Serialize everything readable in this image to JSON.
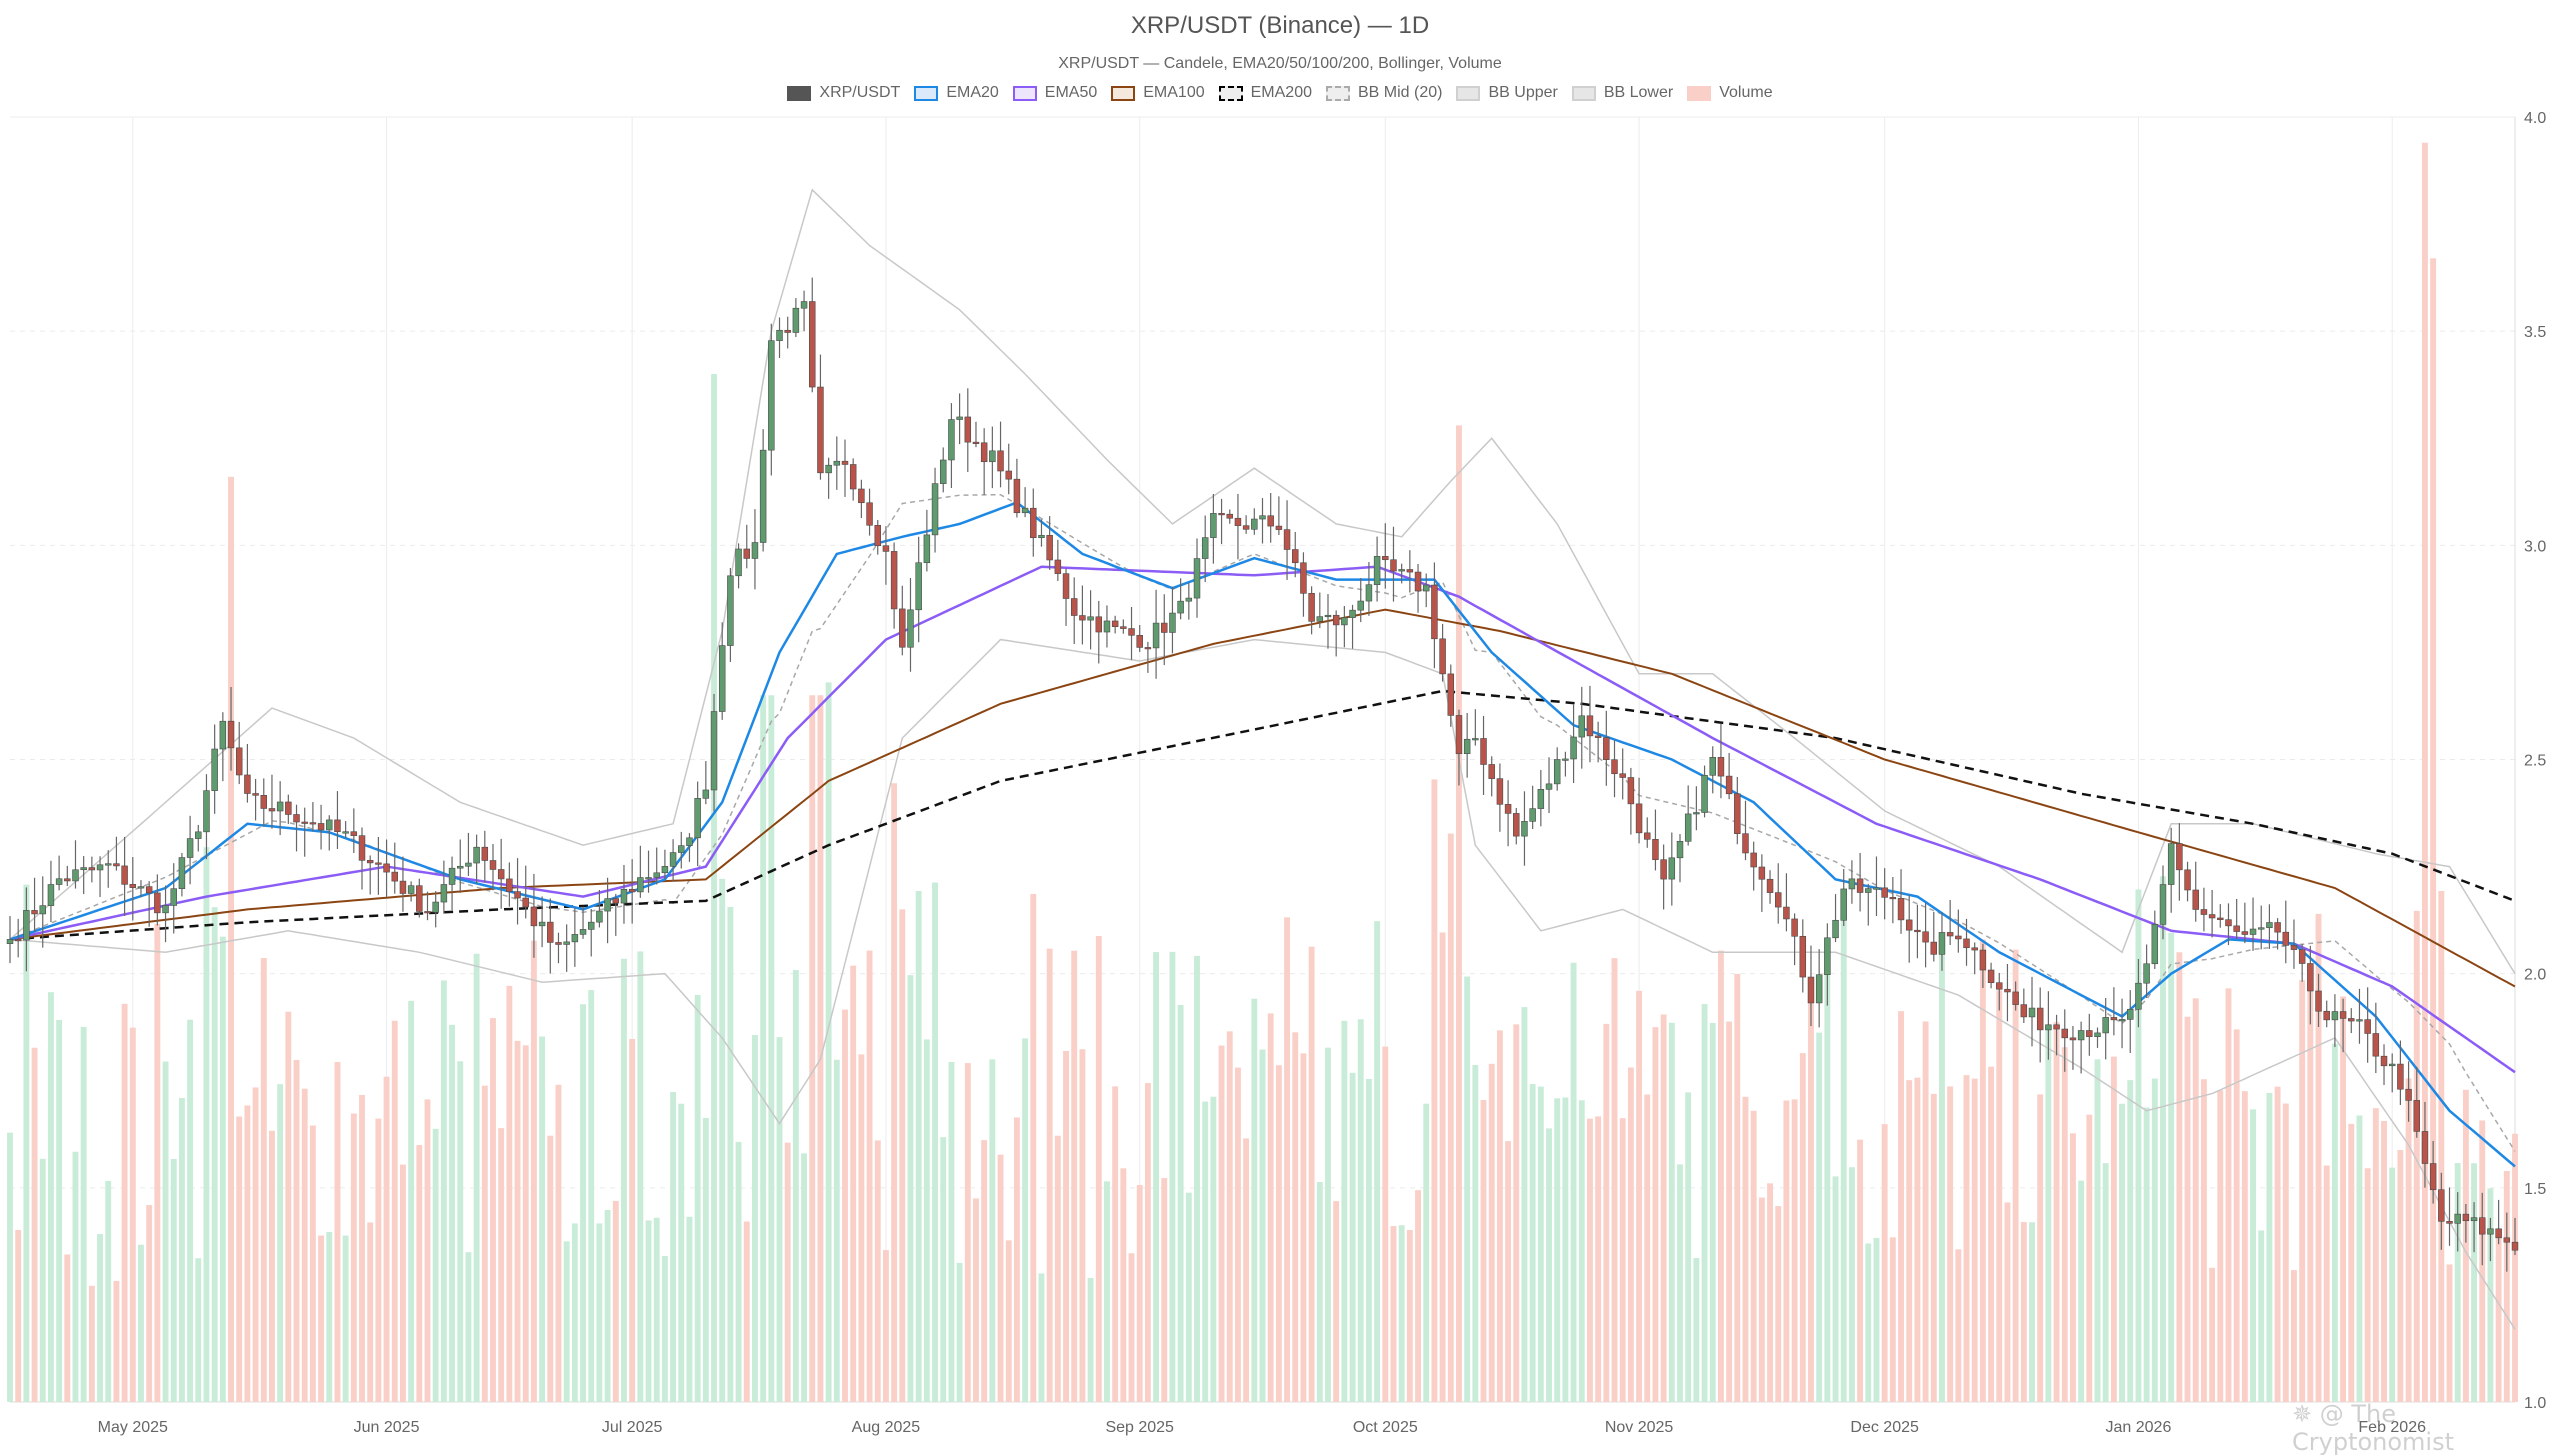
{
  "title": "XRP/USDT (Binance) — 1D",
  "subtitle": "XRP/USDT — Candele, EMA20/50/100/200, Bollinger, Volume",
  "watermark": "✵ @ The Cryptonomist",
  "legend": [
    {
      "label": "XRP/USDT",
      "fill": "#555555",
      "stroke": "#555555",
      "dash": false
    },
    {
      "label": "EMA20",
      "fill": "#dbeafb",
      "stroke": "#1e88e5",
      "dash": false
    },
    {
      "label": "EMA50",
      "fill": "#ede5fb",
      "stroke": "#8b5cf6",
      "dash": false
    },
    {
      "label": "EMA100",
      "fill": "#f5e8dc",
      "stroke": "#8b4513",
      "dash": false
    },
    {
      "label": "EMA200",
      "fill": "#eeeeee",
      "stroke": "#000000",
      "dash": true
    },
    {
      "label": "BB Mid (20)",
      "fill": "#eeeeee",
      "stroke": "#aaaaaa",
      "dash": true
    },
    {
      "label": "BB Upper",
      "fill": "#e6e6e6",
      "stroke": "#d0d0d0",
      "dash": false
    },
    {
      "label": "BB Lower",
      "fill": "#e6e6e6",
      "stroke": "#d0d0d0",
      "dash": false
    },
    {
      "label": "Volume",
      "fill": "#f9cfc7",
      "stroke": "#f9cfc7",
      "dash": false
    }
  ],
  "chart_data": {
    "type": "candlestick",
    "x_start": "2025-04-16",
    "x_end": "2026-02-16",
    "x_tick_labels": [
      {
        "date": "2025-05-01",
        "label": "May 2025"
      },
      {
        "date": "2025-06-01",
        "label": "Jun 2025"
      },
      {
        "date": "2025-07-01",
        "label": "Jul 2025"
      },
      {
        "date": "2025-08-01",
        "label": "Aug 2025"
      },
      {
        "date": "2025-09-01",
        "label": "Sep 2025"
      },
      {
        "date": "2025-10-01",
        "label": "Oct 2025"
      },
      {
        "date": "2025-11-01",
        "label": "Nov 2025"
      },
      {
        "date": "2025-12-01",
        "label": "Dec 2025"
      },
      {
        "date": "2026-01-01",
        "label": "Jan 2026"
      },
      {
        "date": "2026-02-01",
        "label": "Feb 2026"
      }
    ],
    "y_ticks": [
      "1.0",
      "1.5",
      "2.0",
      "2.5",
      "3.0",
      "3.5",
      "4.0"
    ],
    "ylim": [
      1.0,
      4.0
    ],
    "grid": true,
    "legend_position": "top-center",
    "colors": {
      "up": "#5f9b6e",
      "down": "#b8544a",
      "vol_up": "#c8ecd8",
      "vol_down": "#f9cfc7",
      "wick": "#666666"
    },
    "close_anchors": [
      [
        "2025-04-16",
        2.08
      ],
      [
        "2025-04-22",
        2.22
      ],
      [
        "2025-04-28",
        2.25
      ],
      [
        "2025-05-05",
        2.15
      ],
      [
        "2025-05-09",
        2.35
      ],
      [
        "2025-05-12",
        2.58
      ],
      [
        "2025-05-15",
        2.4
      ],
      [
        "2025-05-20",
        2.38
      ],
      [
        "2025-05-27",
        2.32
      ],
      [
        "2025-06-02",
        2.22
      ],
      [
        "2025-06-06",
        2.15
      ],
      [
        "2025-06-12",
        2.3
      ],
      [
        "2025-06-18",
        2.15
      ],
      [
        "2025-06-22",
        2.05
      ],
      [
        "2025-06-26",
        2.12
      ],
      [
        "2025-07-02",
        2.22
      ],
      [
        "2025-07-07",
        2.28
      ],
      [
        "2025-07-10",
        2.45
      ],
      [
        "2025-07-13",
        2.95
      ],
      [
        "2025-07-16",
        3.0
      ],
      [
        "2025-07-18",
        3.48
      ],
      [
        "2025-07-22",
        3.55
      ],
      [
        "2025-07-24",
        3.15
      ],
      [
        "2025-07-27",
        3.2
      ],
      [
        "2025-08-01",
        2.98
      ],
      [
        "2025-08-03",
        2.75
      ],
      [
        "2025-08-05",
        2.95
      ],
      [
        "2025-08-09",
        3.3
      ],
      [
        "2025-08-14",
        3.2
      ],
      [
        "2025-08-20",
        3.0
      ],
      [
        "2025-08-24",
        2.85
      ],
      [
        "2025-08-29",
        2.8
      ],
      [
        "2025-09-02",
        2.78
      ],
      [
        "2025-09-06",
        2.85
      ],
      [
        "2025-09-10",
        3.05
      ],
      [
        "2025-09-14",
        3.05
      ],
      [
        "2025-09-18",
        3.05
      ],
      [
        "2025-09-22",
        2.83
      ],
      [
        "2025-09-26",
        2.82
      ],
      [
        "2025-09-30",
        2.95
      ],
      [
        "2025-10-06",
        2.9
      ],
      [
        "2025-10-10",
        2.5
      ],
      [
        "2025-10-12",
        2.55
      ],
      [
        "2025-10-17",
        2.32
      ],
      [
        "2025-10-21",
        2.45
      ],
      [
        "2025-10-25",
        2.6
      ],
      [
        "2025-10-30",
        2.45
      ],
      [
        "2025-11-04",
        2.2
      ],
      [
        "2025-11-10",
        2.5
      ],
      [
        "2025-11-14",
        2.3
      ],
      [
        "2025-11-18",
        2.18
      ],
      [
        "2025-11-22",
        1.95
      ],
      [
        "2025-11-26",
        2.2
      ],
      [
        "2025-12-02",
        2.18
      ],
      [
        "2025-12-06",
        2.05
      ],
      [
        "2025-12-10",
        2.1
      ],
      [
        "2025-12-14",
        2.0
      ],
      [
        "2025-12-18",
        1.9
      ],
      [
        "2025-12-24",
        1.87
      ],
      [
        "2025-12-30",
        1.88
      ],
      [
        "2026-01-02",
        2.0
      ],
      [
        "2026-01-05",
        2.3
      ],
      [
        "2026-01-08",
        2.15
      ],
      [
        "2026-01-14",
        2.08
      ],
      [
        "2026-01-18",
        2.1
      ],
      [
        "2026-01-24",
        1.9
      ],
      [
        "2026-01-28",
        1.87
      ],
      [
        "2026-02-02",
        1.75
      ],
      [
        "2026-02-05",
        1.55
      ],
      [
        "2026-02-07",
        1.42
      ],
      [
        "2026-02-10",
        1.42
      ],
      [
        "2026-02-16",
        1.37
      ]
    ],
    "ema20_anchors": [
      [
        "2025-04-16",
        2.08
      ],
      [
        "2025-05-05",
        2.2
      ],
      [
        "2025-05-15",
        2.35
      ],
      [
        "2025-05-25",
        2.33
      ],
      [
        "2025-06-10",
        2.22
      ],
      [
        "2025-06-25",
        2.15
      ],
      [
        "2025-07-05",
        2.22
      ],
      [
        "2025-07-12",
        2.4
      ],
      [
        "2025-07-19",
        2.75
      ],
      [
        "2025-07-26",
        2.98
      ],
      [
        "2025-08-03",
        3.02
      ],
      [
        "2025-08-10",
        3.05
      ],
      [
        "2025-08-17",
        3.1
      ],
      [
        "2025-08-25",
        2.98
      ],
      [
        "2025-09-05",
        2.9
      ],
      [
        "2025-09-15",
        2.97
      ],
      [
        "2025-09-25",
        2.92
      ],
      [
        "2025-10-07",
        2.92
      ],
      [
        "2025-10-14",
        2.75
      ],
      [
        "2025-10-24",
        2.58
      ],
      [
        "2025-11-05",
        2.5
      ],
      [
        "2025-11-15",
        2.4
      ],
      [
        "2025-11-25",
        2.22
      ],
      [
        "2025-12-05",
        2.18
      ],
      [
        "2025-12-15",
        2.05
      ],
      [
        "2025-12-30",
        1.9
      ],
      [
        "2026-01-05",
        2.0
      ],
      [
        "2026-01-12",
        2.08
      ],
      [
        "2026-01-20",
        2.07
      ],
      [
        "2026-01-30",
        1.9
      ],
      [
        "2026-02-08",
        1.68
      ],
      [
        "2026-02-16",
        1.55
      ]
    ],
    "ema50_anchors": [
      [
        "2025-04-16",
        2.08
      ],
      [
        "2025-05-10",
        2.18
      ],
      [
        "2025-06-01",
        2.25
      ],
      [
        "2025-06-25",
        2.18
      ],
      [
        "2025-07-10",
        2.25
      ],
      [
        "2025-07-20",
        2.55
      ],
      [
        "2025-08-01",
        2.78
      ],
      [
        "2025-08-20",
        2.95
      ],
      [
        "2025-09-15",
        2.93
      ],
      [
        "2025-09-30",
        2.95
      ],
      [
        "2025-10-10",
        2.88
      ],
      [
        "2025-10-25",
        2.72
      ],
      [
        "2025-11-10",
        2.55
      ],
      [
        "2025-11-30",
        2.35
      ],
      [
        "2025-12-20",
        2.22
      ],
      [
        "2026-01-05",
        2.1
      ],
      [
        "2026-01-20",
        2.07
      ],
      [
        "2026-02-01",
        1.97
      ],
      [
        "2026-02-16",
        1.77
      ]
    ],
    "ema100_anchors": [
      [
        "2025-04-16",
        2.08
      ],
      [
        "2025-05-15",
        2.15
      ],
      [
        "2025-06-15",
        2.2
      ],
      [
        "2025-07-10",
        2.22
      ],
      [
        "2025-07-25",
        2.45
      ],
      [
        "2025-08-15",
        2.63
      ],
      [
        "2025-09-10",
        2.77
      ],
      [
        "2025-10-01",
        2.85
      ],
      [
        "2025-10-15",
        2.8
      ],
      [
        "2025-11-05",
        2.7
      ],
      [
        "2025-12-01",
        2.5
      ],
      [
        "2026-01-01",
        2.33
      ],
      [
        "2026-01-25",
        2.2
      ],
      [
        "2026-02-16",
        1.97
      ]
    ],
    "ema200_anchors": [
      [
        "2025-04-16",
        2.08
      ],
      [
        "2025-05-15",
        2.12
      ],
      [
        "2025-06-15",
        2.15
      ],
      [
        "2025-07-10",
        2.17
      ],
      [
        "2025-07-25",
        2.3
      ],
      [
        "2025-08-15",
        2.45
      ],
      [
        "2025-09-15",
        2.57
      ],
      [
        "2025-10-08",
        2.66
      ],
      [
        "2025-10-25",
        2.63
      ],
      [
        "2025-11-25",
        2.55
      ],
      [
        "2025-12-25",
        2.42
      ],
      [
        "2026-01-15",
        2.35
      ],
      [
        "2026-02-01",
        2.28
      ],
      [
        "2026-02-16",
        2.17
      ]
    ],
    "bb_upper_anchors": [
      [
        "2025-04-16",
        2.08
      ],
      [
        "2025-05-05",
        2.4
      ],
      [
        "2025-05-18",
        2.62
      ],
      [
        "2025-05-28",
        2.55
      ],
      [
        "2025-06-10",
        2.4
      ],
      [
        "2025-06-25",
        2.3
      ],
      [
        "2025-07-06",
        2.35
      ],
      [
        "2025-07-12",
        2.8
      ],
      [
        "2025-07-18",
        3.5
      ],
      [
        "2025-07-23",
        3.83
      ],
      [
        "2025-07-30",
        3.7
      ],
      [
        "2025-08-10",
        3.55
      ],
      [
        "2025-08-18",
        3.4
      ],
      [
        "2025-08-28",
        3.2
      ],
      [
        "2025-09-05",
        3.05
      ],
      [
        "2025-09-15",
        3.18
      ],
      [
        "2025-09-25",
        3.05
      ],
      [
        "2025-10-03",
        3.02
      ],
      [
        "2025-10-09",
        3.15
      ],
      [
        "2025-10-14",
        3.25
      ],
      [
        "2025-10-22",
        3.05
      ],
      [
        "2025-11-01",
        2.7
      ],
      [
        "2025-11-10",
        2.7
      ],
      [
        "2025-11-20",
        2.55
      ],
      [
        "2025-12-01",
        2.38
      ],
      [
        "2025-12-15",
        2.25
      ],
      [
        "2025-12-30",
        2.05
      ],
      [
        "2026-01-05",
        2.35
      ],
      [
        "2026-01-15",
        2.35
      ],
      [
        "2026-01-30",
        2.28
      ],
      [
        "2026-02-08",
        2.25
      ],
      [
        "2026-02-16",
        2.0
      ]
    ],
    "bb_lower_anchors": [
      [
        "2025-04-16",
        2.08
      ],
      [
        "2025-05-05",
        2.05
      ],
      [
        "2025-05-20",
        2.1
      ],
      [
        "2025-06-05",
        2.05
      ],
      [
        "2025-06-20",
        1.98
      ],
      [
        "2025-07-05",
        2.0
      ],
      [
        "2025-07-12",
        1.85
      ],
      [
        "2025-07-19",
        1.65
      ],
      [
        "2025-07-24",
        1.8
      ],
      [
        "2025-08-03",
        2.55
      ],
      [
        "2025-08-15",
        2.78
      ],
      [
        "2025-09-01",
        2.73
      ],
      [
        "2025-09-15",
        2.78
      ],
      [
        "2025-10-01",
        2.75
      ],
      [
        "2025-10-08",
        2.7
      ],
      [
        "2025-10-12",
        2.3
      ],
      [
        "2025-10-20",
        2.1
      ],
      [
        "2025-10-30",
        2.15
      ],
      [
        "2025-11-10",
        2.05
      ],
      [
        "2025-11-25",
        2.05
      ],
      [
        "2025-12-10",
        1.95
      ],
      [
        "2025-12-25",
        1.78
      ],
      [
        "2026-01-02",
        1.68
      ],
      [
        "2026-01-10",
        1.72
      ],
      [
        "2026-01-25",
        1.85
      ],
      [
        "2026-02-03",
        1.6
      ],
      [
        "2026-02-10",
        1.35
      ],
      [
        "2026-02-16",
        1.17
      ]
    ],
    "volume_note": "volume bars share the price pane; up-days green, down-days red",
    "volume_spikes": [
      [
        "2025-05-13",
        0.72
      ],
      [
        "2025-07-11",
        0.8
      ],
      [
        "2025-07-25",
        0.56
      ],
      [
        "2025-10-10",
        0.76
      ],
      [
        "2025-11-01",
        0.32
      ],
      [
        "2026-01-06",
        0.35
      ],
      [
        "2026-02-05",
        0.98
      ],
      [
        "2026-02-06",
        0.89
      ]
    ]
  }
}
